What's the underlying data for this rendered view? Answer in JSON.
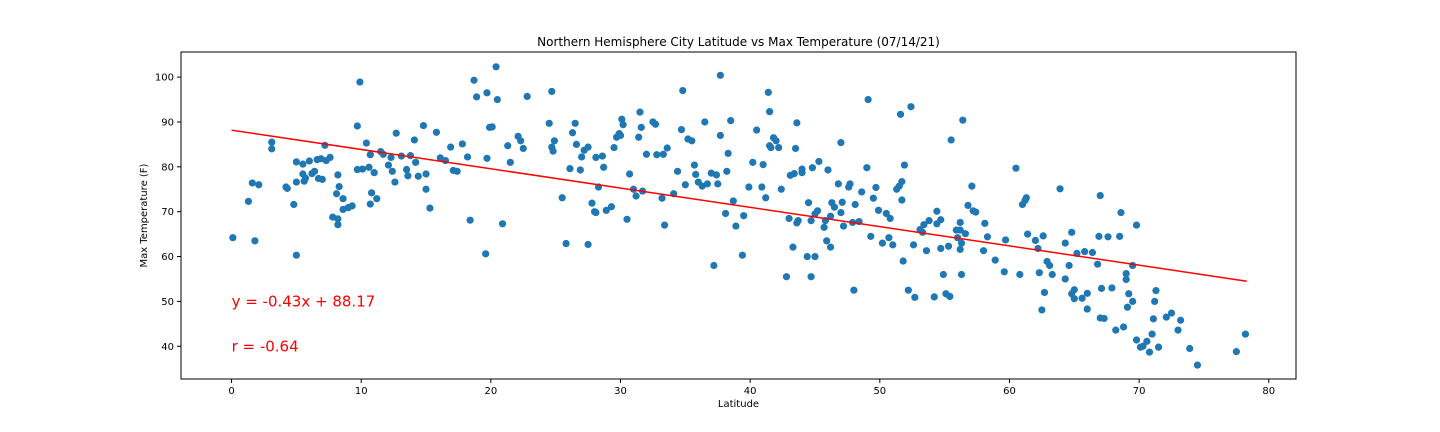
{
  "chart_data": {
    "type": "scatter",
    "title": "Northern Hemisphere City Latitude vs Max Temperature (07/14/21)",
    "xlabel": "Latitude",
    "ylabel": "Max Temperature (F)",
    "xlim": [
      -3.9,
      82.1
    ],
    "ylim": [
      32.7,
      105.6
    ],
    "xticks": [
      0,
      10,
      20,
      30,
      40,
      50,
      60,
      70,
      80
    ],
    "yticks": [
      40,
      50,
      60,
      70,
      80,
      90,
      100
    ],
    "grid": false,
    "point_color": "#1f77b4",
    "regression": {
      "slope": -0.43,
      "intercept": 88.17,
      "x_range": [
        0,
        78.3
      ],
      "color": "#ff0000",
      "equation_label": "y = -0.43x + 88.17",
      "r_label": "r = -0.64",
      "equation_label_at": [
        0,
        50
      ],
      "r_label_at": [
        0,
        40
      ]
    },
    "points": [
      [
        0.1,
        64.2
      ],
      [
        1.3,
        72.3
      ],
      [
        1.6,
        76.4
      ],
      [
        1.8,
        63.5
      ],
      [
        2.1,
        76.0
      ],
      [
        3.1,
        85.5
      ],
      [
        3.1,
        84.0
      ],
      [
        4.2,
        75.5
      ],
      [
        4.3,
        75.2
      ],
      [
        4.8,
        71.6
      ],
      [
        5.0,
        81.1
      ],
      [
        5.0,
        76.6
      ],
      [
        5.0,
        60.3
      ],
      [
        5.5,
        80.6
      ],
      [
        5.5,
        78.4
      ],
      [
        5.6,
        76.8
      ],
      [
        5.7,
        77.5
      ],
      [
        6.0,
        81.3
      ],
      [
        6.2,
        78.5
      ],
      [
        6.4,
        79.0
      ],
      [
        6.6,
        81.6
      ],
      [
        6.7,
        77.4
      ],
      [
        6.9,
        81.8
      ],
      [
        7.0,
        77.2
      ],
      [
        7.2,
        84.8
      ],
      [
        7.3,
        81.4
      ],
      [
        7.6,
        82.1
      ],
      [
        7.8,
        68.8
      ],
      [
        8.1,
        74.0
      ],
      [
        8.2,
        67.1
      ],
      [
        8.2,
        68.4
      ],
      [
        8.2,
        78.2
      ],
      [
        8.3,
        75.6
      ],
      [
        8.6,
        70.5
      ],
      [
        8.6,
        72.9
      ],
      [
        9.0,
        70.9
      ],
      [
        9.3,
        71.3
      ],
      [
        9.7,
        89.1
      ],
      [
        9.7,
        79.4
      ],
      [
        9.9,
        98.9
      ],
      [
        10.1,
        79.5
      ],
      [
        10.4,
        85.3
      ],
      [
        10.6,
        79.9
      ],
      [
        10.7,
        71.7
      ],
      [
        10.7,
        82.7
      ],
      [
        10.8,
        74.2
      ],
      [
        11.0,
        78.7
      ],
      [
        11.2,
        72.9
      ],
      [
        11.5,
        83.4
      ],
      [
        11.7,
        82.8
      ],
      [
        12.1,
        80.4
      ],
      [
        12.3,
        82.1
      ],
      [
        12.4,
        79.0
      ],
      [
        12.6,
        76.6
      ],
      [
        12.7,
        87.5
      ],
      [
        13.1,
        82.4
      ],
      [
        13.5,
        79.4
      ],
      [
        13.6,
        78.0
      ],
      [
        13.8,
        82.5
      ],
      [
        14.1,
        86.0
      ],
      [
        14.2,
        81.0
      ],
      [
        14.4,
        77.9
      ],
      [
        14.8,
        89.2
      ],
      [
        15.0,
        75.0
      ],
      [
        15.0,
        78.4
      ],
      [
        15.3,
        70.8
      ],
      [
        15.8,
        87.7
      ],
      [
        16.1,
        82.0
      ],
      [
        16.5,
        81.4
      ],
      [
        16.9,
        84.4
      ],
      [
        17.1,
        79.2
      ],
      [
        17.4,
        79.0
      ],
      [
        17.8,
        85.1
      ],
      [
        18.2,
        82.2
      ],
      [
        18.4,
        68.1
      ],
      [
        18.7,
        99.3
      ],
      [
        18.9,
        95.6
      ],
      [
        19.6,
        60.6
      ],
      [
        19.7,
        96.5
      ],
      [
        19.7,
        81.9
      ],
      [
        19.9,
        88.8
      ],
      [
        20.1,
        88.9
      ],
      [
        20.4,
        102.3
      ],
      [
        20.5,
        95.0
      ],
      [
        20.9,
        67.3
      ],
      [
        21.3,
        84.7
      ],
      [
        21.5,
        81.0
      ],
      [
        22.1,
        86.8
      ],
      [
        22.3,
        85.8
      ],
      [
        22.5,
        84.1
      ],
      [
        22.8,
        95.7
      ],
      [
        24.5,
        89.7
      ],
      [
        24.7,
        96.8
      ],
      [
        24.7,
        84.4
      ],
      [
        24.8,
        83.5
      ],
      [
        24.9,
        85.8
      ],
      [
        25.5,
        73.1
      ],
      [
        25.8,
        62.9
      ],
      [
        26.1,
        79.6
      ],
      [
        26.3,
        87.6
      ],
      [
        26.5,
        89.7
      ],
      [
        26.6,
        85.0
      ],
      [
        26.9,
        79.3
      ],
      [
        27.0,
        82.2
      ],
      [
        27.2,
        83.7
      ],
      [
        27.5,
        84.4
      ],
      [
        27.5,
        62.7
      ],
      [
        27.8,
        71.9
      ],
      [
        28.0,
        70.0
      ],
      [
        28.1,
        69.8
      ],
      [
        28.1,
        82.1
      ],
      [
        28.3,
        75.5
      ],
      [
        28.6,
        82.4
      ],
      [
        28.7,
        79.9
      ],
      [
        28.9,
        70.3
      ],
      [
        29.3,
        71.1
      ],
      [
        29.5,
        84.3
      ],
      [
        29.7,
        86.6
      ],
      [
        29.9,
        87.4
      ],
      [
        30.0,
        87.0
      ],
      [
        30.1,
        90.6
      ],
      [
        30.2,
        89.4
      ],
      [
        30.5,
        68.3
      ],
      [
        30.7,
        78.4
      ],
      [
        31.0,
        75.0
      ],
      [
        31.2,
        73.5
      ],
      [
        31.4,
        86.6
      ],
      [
        31.5,
        92.2
      ],
      [
        31.6,
        88.8
      ],
      [
        31.7,
        74.6
      ],
      [
        32.0,
        82.8
      ],
      [
        32.5,
        90.0
      ],
      [
        32.7,
        89.5
      ],
      [
        32.8,
        82.7
      ],
      [
        33.2,
        73.0
      ],
      [
        33.3,
        82.8
      ],
      [
        33.4,
        67.0
      ],
      [
        33.6,
        84.2
      ],
      [
        34.1,
        74.0
      ],
      [
        34.4,
        79.0
      ],
      [
        34.7,
        88.3
      ],
      [
        34.8,
        97.0
      ],
      [
        35.0,
        76.0
      ],
      [
        35.2,
        86.2
      ],
      [
        35.5,
        85.8
      ],
      [
        35.7,
        80.4
      ],
      [
        35.8,
        78.3
      ],
      [
        36.0,
        76.6
      ],
      [
        36.3,
        75.7
      ],
      [
        36.5,
        90.0
      ],
      [
        36.7,
        76.2
      ],
      [
        37.0,
        78.6
      ],
      [
        37.2,
        58.0
      ],
      [
        37.4,
        78.2
      ],
      [
        37.5,
        76.2
      ],
      [
        37.7,
        87.0
      ],
      [
        37.7,
        100.4
      ],
      [
        38.1,
        69.6
      ],
      [
        38.2,
        79.0
      ],
      [
        38.3,
        83.0
      ],
      [
        38.5,
        90.3
      ],
      [
        38.7,
        72.4
      ],
      [
        38.9,
        66.8
      ],
      [
        39.4,
        60.3
      ],
      [
        39.5,
        69.1
      ],
      [
        39.9,
        75.5
      ],
      [
        40.2,
        81.0
      ],
      [
        40.5,
        88.2
      ],
      [
        40.9,
        75.5
      ],
      [
        41.0,
        80.5
      ],
      [
        41.2,
        73.1
      ],
      [
        41.4,
        96.6
      ],
      [
        41.5,
        92.3
      ],
      [
        41.5,
        84.7
      ],
      [
        41.6,
        84.3
      ],
      [
        41.8,
        86.5
      ],
      [
        42.0,
        85.8
      ],
      [
        42.2,
        84.3
      ],
      [
        42.4,
        75.0
      ],
      [
        42.8,
        55.5
      ],
      [
        43.0,
        68.5
      ],
      [
        43.1,
        78.1
      ],
      [
        43.3,
        62.1
      ],
      [
        43.4,
        78.5
      ],
      [
        43.5,
        84.1
      ],
      [
        43.6,
        89.8
      ],
      [
        43.6,
        67.5
      ],
      [
        43.7,
        68.0
      ],
      [
        44.0,
        79.5
      ],
      [
        44.0,
        78.7
      ],
      [
        44.4,
        60.0
      ],
      [
        44.5,
        72.0
      ],
      [
        44.7,
        55.5
      ],
      [
        44.7,
        68.0
      ],
      [
        44.8,
        79.8
      ],
      [
        45.0,
        69.5
      ],
      [
        45.0,
        60.0
      ],
      [
        45.2,
        70.2
      ],
      [
        45.3,
        81.2
      ],
      [
        45.7,
        66.5
      ],
      [
        45.8,
        68.0
      ],
      [
        45.9,
        63.5
      ],
      [
        46.0,
        79.3
      ],
      [
        46.2,
        62.1
      ],
      [
        46.2,
        69.0
      ],
      [
        46.3,
        72.0
      ],
      [
        46.5,
        71.0
      ],
      [
        46.8,
        76.2
      ],
      [
        47.0,
        85.4
      ],
      [
        47.0,
        69.8
      ],
      [
        47.1,
        72.1
      ],
      [
        47.2,
        66.8
      ],
      [
        47.6,
        75.5
      ],
      [
        47.7,
        76.2
      ],
      [
        47.9,
        67.6
      ],
      [
        48.0,
        52.5
      ],
      [
        48.1,
        71.6
      ],
      [
        48.4,
        67.8
      ],
      [
        48.6,
        74.4
      ],
      [
        49.0,
        79.8
      ],
      [
        49.1,
        95.0
      ],
      [
        49.3,
        64.5
      ],
      [
        49.5,
        73.0
      ],
      [
        49.7,
        75.4
      ],
      [
        49.9,
        70.3
      ],
      [
        50.2,
        63.0
      ],
      [
        50.5,
        69.6
      ],
      [
        50.7,
        64.2
      ],
      [
        50.8,
        68.5
      ],
      [
        51.0,
        62.6
      ],
      [
        51.3,
        75.0
      ],
      [
        51.5,
        75.7
      ],
      [
        51.6,
        91.7
      ],
      [
        51.7,
        76.7
      ],
      [
        51.7,
        72.6
      ],
      [
        51.8,
        59.0
      ],
      [
        51.9,
        80.4
      ],
      [
        52.2,
        52.5
      ],
      [
        52.4,
        93.4
      ],
      [
        52.6,
        62.6
      ],
      [
        52.7,
        50.9
      ],
      [
        53.1,
        66.0
      ],
      [
        53.3,
        65.4
      ],
      [
        53.4,
        67.1
      ],
      [
        53.6,
        61.3
      ],
      [
        53.8,
        68.0
      ],
      [
        54.2,
        51.0
      ],
      [
        54.4,
        70.1
      ],
      [
        54.4,
        67.3
      ],
      [
        54.7,
        61.8
      ],
      [
        54.7,
        68.2
      ],
      [
        54.9,
        56.0
      ],
      [
        55.1,
        51.7
      ],
      [
        55.3,
        62.3
      ],
      [
        55.4,
        51.1
      ],
      [
        55.5,
        86.0
      ],
      [
        55.9,
        65.9
      ],
      [
        56.0,
        64.2
      ],
      [
        56.2,
        65.9
      ],
      [
        56.2,
        67.6
      ],
      [
        56.2,
        61.6
      ],
      [
        56.3,
        63.0
      ],
      [
        56.3,
        56.0
      ],
      [
        56.4,
        90.4
      ],
      [
        56.6,
        65.1
      ],
      [
        56.8,
        71.4
      ],
      [
        57.1,
        75.7
      ],
      [
        57.2,
        70.2
      ],
      [
        57.4,
        69.9
      ],
      [
        58.0,
        61.3
      ],
      [
        58.1,
        67.4
      ],
      [
        58.3,
        64.4
      ],
      [
        58.9,
        59.2
      ],
      [
        59.6,
        56.6
      ],
      [
        59.7,
        63.7
      ],
      [
        60.5,
        79.7
      ],
      [
        60.8,
        56.0
      ],
      [
        61.0,
        71.6
      ],
      [
        61.2,
        72.5
      ],
      [
        61.3,
        73.1
      ],
      [
        61.4,
        65.0
      ],
      [
        62.0,
        63.6
      ],
      [
        62.2,
        61.8
      ],
      [
        62.3,
        56.4
      ],
      [
        62.5,
        48.1
      ],
      [
        62.6,
        64.6
      ],
      [
        62.7,
        52.0
      ],
      [
        62.9,
        58.9
      ],
      [
        63.1,
        58.0
      ],
      [
        63.3,
        56.0
      ],
      [
        63.9,
        75.1
      ],
      [
        64.3,
        63.0
      ],
      [
        64.3,
        55.0
      ],
      [
        64.6,
        58.0
      ],
      [
        64.8,
        65.4
      ],
      [
        64.8,
        51.7
      ],
      [
        65.0,
        50.6
      ],
      [
        65.0,
        52.6
      ],
      [
        65.2,
        60.7
      ],
      [
        65.6,
        50.7
      ],
      [
        65.8,
        61.1
      ],
      [
        66.0,
        48.3
      ],
      [
        66.0,
        51.8
      ],
      [
        66.4,
        60.9
      ],
      [
        66.8,
        58.3
      ],
      [
        66.9,
        64.5
      ],
      [
        67.0,
        73.6
      ],
      [
        67.0,
        46.3
      ],
      [
        67.1,
        52.9
      ],
      [
        67.3,
        46.2
      ],
      [
        67.6,
        64.4
      ],
      [
        67.9,
        53.0
      ],
      [
        68.2,
        43.6
      ],
      [
        68.5,
        64.5
      ],
      [
        68.6,
        69.8
      ],
      [
        68.8,
        44.3
      ],
      [
        69.0,
        56.2
      ],
      [
        69.0,
        54.9
      ],
      [
        69.1,
        48.7
      ],
      [
        69.2,
        51.7
      ],
      [
        69.5,
        50.0
      ],
      [
        69.5,
        58.0
      ],
      [
        69.8,
        67.0
      ],
      [
        69.8,
        41.4
      ],
      [
        70.1,
        39.8
      ],
      [
        70.3,
        40.0
      ],
      [
        70.6,
        41.1
      ],
      [
        70.8,
        38.7
      ],
      [
        71.0,
        42.7
      ],
      [
        71.1,
        46.1
      ],
      [
        71.2,
        50.0
      ],
      [
        71.3,
        52.4
      ],
      [
        71.5,
        39.8
      ],
      [
        72.1,
        46.5
      ],
      [
        72.5,
        47.4
      ],
      [
        73.0,
        43.6
      ],
      [
        73.2,
        45.8
      ],
      [
        73.9,
        39.5
      ],
      [
        74.5,
        35.8
      ],
      [
        77.5,
        38.8
      ],
      [
        78.2,
        42.7
      ]
    ]
  }
}
